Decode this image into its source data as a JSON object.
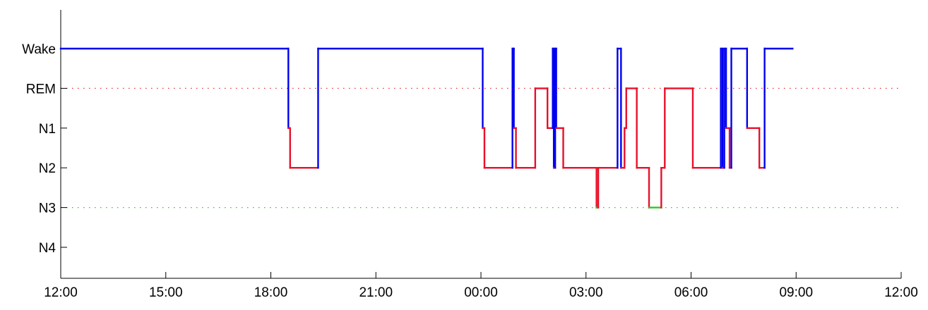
{
  "chart_data": {
    "type": "line",
    "title": "",
    "xlabel": "",
    "ylabel": "",
    "x_axis": {
      "unit": "hours since 12:00",
      "range": [
        0,
        24
      ],
      "ticks": [
        0,
        3,
        6,
        9,
        12,
        15,
        18,
        21,
        24
      ],
      "tick_labels": [
        "12:00",
        "15:00",
        "18:00",
        "21:00",
        "00:00",
        "03:00",
        "06:00",
        "09:00",
        "12:00"
      ]
    },
    "y_axis": {
      "categories": [
        "Wake",
        "REM",
        "N1",
        "N2",
        "N3",
        "N4"
      ]
    },
    "reference_lines": [
      {
        "stage": "REM",
        "style": "dotted",
        "color": "#e8303a"
      },
      {
        "stage": "N3",
        "style": "dotted",
        "color": "#22cc22"
      }
    ],
    "colors": {
      "wake": "#0000ee",
      "sleep": "#e8102a",
      "deep": "#22cc22"
    },
    "grid": false,
    "legend": "none",
    "hypnogram": [
      {
        "t": 0.0,
        "stage": "Wake"
      },
      {
        "t": 6.5,
        "stage": "N1"
      },
      {
        "t": 6.55,
        "stage": "N2"
      },
      {
        "t": 7.35,
        "stage": "Wake"
      },
      {
        "t": 12.05,
        "stage": "N1"
      },
      {
        "t": 12.1,
        "stage": "N2"
      },
      {
        "t": 12.9,
        "stage": "Wake"
      },
      {
        "t": 12.94,
        "stage": "N1"
      },
      {
        "t": 13.0,
        "stage": "N2"
      },
      {
        "t": 13.55,
        "stage": "REM"
      },
      {
        "t": 13.9,
        "stage": "N1"
      },
      {
        "t": 14.05,
        "stage": "Wake"
      },
      {
        "t": 14.08,
        "stage": "N2"
      },
      {
        "t": 14.12,
        "stage": "Wake"
      },
      {
        "t": 14.15,
        "stage": "N1"
      },
      {
        "t": 14.35,
        "stage": "N2"
      },
      {
        "t": 15.3,
        "stage": "N3"
      },
      {
        "t": 15.35,
        "stage": "N2"
      },
      {
        "t": 15.9,
        "stage": "Wake"
      },
      {
        "t": 16.0,
        "stage": "N2"
      },
      {
        "t": 16.1,
        "stage": "N1"
      },
      {
        "t": 16.15,
        "stage": "REM"
      },
      {
        "t": 16.45,
        "stage": "N2"
      },
      {
        "t": 16.8,
        "stage": "N3"
      },
      {
        "t": 17.15,
        "stage": "N2"
      },
      {
        "t": 17.25,
        "stage": "REM"
      },
      {
        "t": 18.05,
        "stage": "N2"
      },
      {
        "t": 18.85,
        "stage": "Wake"
      },
      {
        "t": 18.9,
        "stage": "N2"
      },
      {
        "t": 18.95,
        "stage": "Wake"
      },
      {
        "t": 19.0,
        "stage": "N1"
      },
      {
        "t": 19.1,
        "stage": "N2"
      },
      {
        "t": 19.15,
        "stage": "Wake"
      },
      {
        "t": 19.6,
        "stage": "N1"
      },
      {
        "t": 19.95,
        "stage": "N2"
      },
      {
        "t": 20.1,
        "stage": "Wake"
      },
      {
        "t": 20.9,
        "stage": null
      }
    ]
  }
}
